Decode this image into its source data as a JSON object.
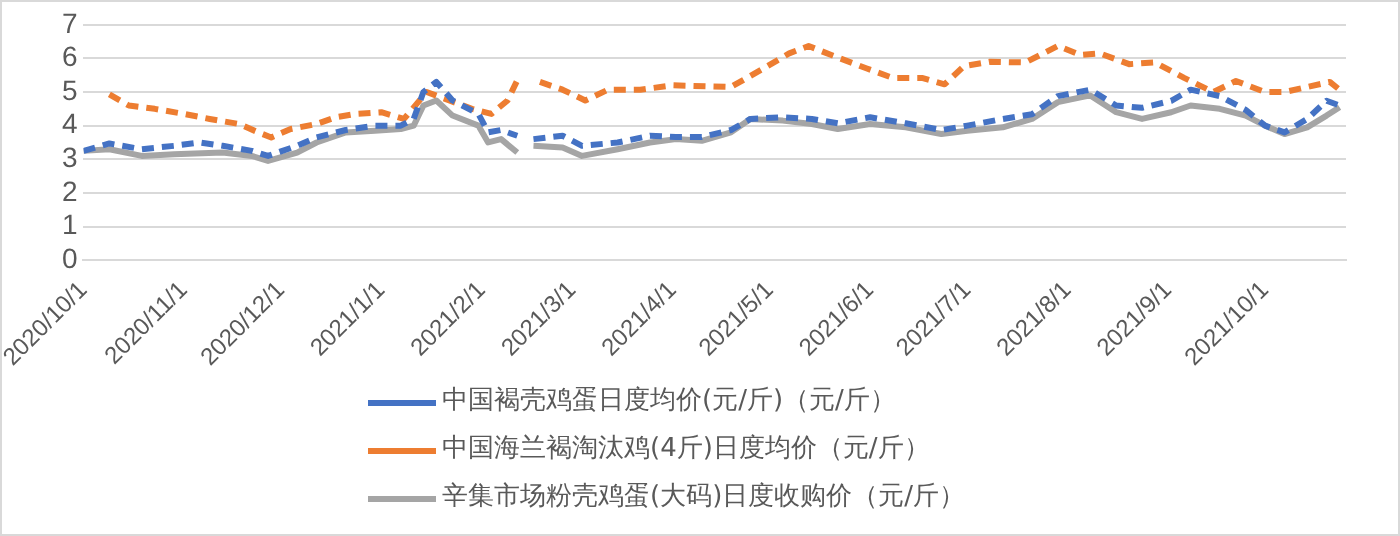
{
  "chart_data": {
    "type": "line",
    "legend": "bottom",
    "grid": "y",
    "marker": "none",
    "xlim": [
      "2020-10-01",
      "2021-10-26"
    ],
    "xticks": [
      {
        "value": "2020-10-01",
        "label": "2020/10/1"
      },
      {
        "value": "2020-11-01",
        "label": "2020/11/1"
      },
      {
        "value": "2020-12-01",
        "label": "2020/12/1"
      },
      {
        "value": "2021-01-01",
        "label": "2021/1/1"
      },
      {
        "value": "2021-02-01",
        "label": "2021/2/1"
      },
      {
        "value": "2021-03-01",
        "label": "2021/3/1"
      },
      {
        "value": "2021-04-01",
        "label": "2021/4/1"
      },
      {
        "value": "2021-05-01",
        "label": "2021/5/1"
      },
      {
        "value": "2021-06-01",
        "label": "2021/6/1"
      },
      {
        "value": "2021-07-01",
        "label": "2021/7/1"
      },
      {
        "value": "2021-08-01",
        "label": "2021/8/1"
      },
      {
        "value": "2021-09-01",
        "label": "2021/9/1"
      },
      {
        "value": "2021-10-01",
        "label": "2021/10/1"
      }
    ],
    "ylim": [
      0,
      7
    ],
    "yticks": [
      0,
      1,
      2,
      3,
      4,
      5,
      6,
      7
    ],
    "series": [
      {
        "name": "中国褐壳鸡蛋日度均价(元/斤)（元/斤）",
        "color": "#4472c4",
        "line_style": "dashed",
        "x": [
          "2020-10-01",
          "2020-10-09",
          "2020-10-19",
          "2020-10-29",
          "2020-11-06",
          "2020-11-13",
          "2020-11-22",
          "2020-11-27",
          "2020-12-06",
          "2020-12-12",
          "2020-12-21",
          "2020-12-30",
          "2021-01-07",
          "2021-01-11",
          "2021-01-14",
          "2021-01-18",
          "2021-01-23",
          "2021-01-31",
          "2021-02-03",
          "2021-02-07",
          "2021-02-12",
          "2021-02-14",
          "2021-02-17",
          "2021-02-26",
          "2021-03-04",
          "2021-03-15",
          "2021-03-25",
          "2021-04-02",
          "2021-04-10",
          "2021-04-19",
          "2021-04-25",
          "2021-05-05",
          "2021-05-14",
          "2021-05-22",
          "2021-06-01",
          "2021-06-12",
          "2021-06-23",
          "2021-07-01",
          "2021-07-12",
          "2021-07-21",
          "2021-07-29",
          "2021-08-08",
          "2021-08-16",
          "2021-08-24",
          "2021-09-02",
          "2021-09-08",
          "2021-09-17",
          "2021-09-25",
          "2021-10-01",
          "2021-10-07",
          "2021-10-14",
          "2021-10-20",
          "2021-10-24"
        ],
        "values": [
          3.25,
          3.47,
          3.3,
          3.4,
          3.5,
          3.4,
          3.25,
          3.1,
          3.4,
          3.65,
          3.87,
          4.0,
          4.0,
          4.2,
          5.0,
          5.3,
          4.75,
          4.35,
          3.8,
          3.87,
          3.7,
          null,
          3.6,
          3.7,
          3.4,
          3.5,
          3.7,
          3.66,
          3.66,
          3.87,
          4.2,
          4.25,
          4.2,
          4.07,
          4.25,
          4.07,
          3.87,
          4.0,
          4.2,
          4.34,
          4.88,
          5.07,
          4.6,
          4.53,
          4.74,
          5.07,
          4.88,
          4.47,
          4.0,
          3.8,
          4.2,
          4.74,
          4.6
        ]
      },
      {
        "name": "中国海兰褐淘汰鸡(4斤)日度均价（元/斤）",
        "color": "#ed7d31",
        "line_style": "dashed",
        "x": [
          "2020-10-09",
          "2020-10-15",
          "2020-10-23",
          "2020-11-01",
          "2020-11-09",
          "2020-11-18",
          "2020-11-24",
          "2020-11-28",
          "2020-12-04",
          "2020-12-12",
          "2020-12-18",
          "2020-12-24",
          "2021-01-01",
          "2021-01-08",
          "2021-01-15",
          "2021-01-22",
          "2021-01-29",
          "2021-02-04",
          "2021-02-09",
          "2021-02-12",
          "2021-02-15",
          "2021-02-19",
          "2021-02-26",
          "2021-03-05",
          "2021-03-12",
          "2021-03-22",
          "2021-04-01",
          "2021-04-19",
          "2021-04-29",
          "2021-05-07",
          "2021-05-13",
          "2021-05-20",
          "2021-05-31",
          "2021-06-08",
          "2021-06-17",
          "2021-06-24",
          "2021-06-30",
          "2021-07-08",
          "2021-07-19",
          "2021-07-29",
          "2021-08-05",
          "2021-08-11",
          "2021-08-20",
          "2021-08-28",
          "2021-09-06",
          "2021-09-15",
          "2021-09-22",
          "2021-10-01",
          "2021-10-07",
          "2021-10-14",
          "2021-10-21",
          "2021-10-24"
        ],
        "values": [
          4.93,
          4.6,
          4.5,
          4.35,
          4.2,
          4.05,
          3.8,
          3.65,
          3.9,
          4.05,
          4.25,
          4.35,
          4.4,
          4.2,
          5.0,
          4.75,
          4.5,
          4.35,
          4.75,
          5.35,
          null,
          5.3,
          5.07,
          4.75,
          5.07,
          5.07,
          5.2,
          5.15,
          5.7,
          6.15,
          6.37,
          6.1,
          5.7,
          5.42,
          5.42,
          5.23,
          5.77,
          5.9,
          5.88,
          6.37,
          6.1,
          6.15,
          5.83,
          5.88,
          5.42,
          5.0,
          5.33,
          5.0,
          5.0,
          5.15,
          5.3,
          5.07
        ]
      },
      {
        "name": "辛集市场粉壳鸡蛋(大码)日度收购价（元/斤）",
        "color": "#a5a5a5",
        "line_style": "solid",
        "x": [
          "2020-10-01",
          "2020-10-09",
          "2020-10-19",
          "2020-10-29",
          "2020-11-13",
          "2020-11-22",
          "2020-11-27",
          "2020-12-06",
          "2020-12-12",
          "2020-12-21",
          "2020-12-30",
          "2021-01-07",
          "2021-01-11",
          "2021-01-14",
          "2021-01-18",
          "2021-01-23",
          "2021-01-31",
          "2021-02-03",
          "2021-02-07",
          "2021-02-12",
          "2021-02-14",
          "2021-02-17",
          "2021-02-26",
          "2021-03-04",
          "2021-03-15",
          "2021-03-25",
          "2021-04-02",
          "2021-04-10",
          "2021-04-19",
          "2021-04-25",
          "2021-05-05",
          "2021-05-14",
          "2021-05-22",
          "2021-06-01",
          "2021-06-12",
          "2021-06-23",
          "2021-07-01",
          "2021-07-12",
          "2021-07-21",
          "2021-07-29",
          "2021-08-08",
          "2021-08-16",
          "2021-08-24",
          "2021-09-02",
          "2021-09-08",
          "2021-09-17",
          "2021-09-25",
          "2021-10-01",
          "2021-10-07",
          "2021-10-14",
          "2021-10-20",
          "2021-10-24"
        ],
        "values": [
          3.25,
          3.3,
          3.1,
          3.15,
          3.2,
          3.1,
          2.95,
          3.2,
          3.5,
          3.8,
          3.85,
          3.9,
          4.0,
          4.6,
          4.75,
          4.3,
          4.0,
          3.5,
          3.6,
          3.2,
          null,
          3.4,
          3.35,
          3.1,
          3.3,
          3.5,
          3.6,
          3.55,
          3.8,
          4.2,
          4.15,
          4.05,
          3.9,
          4.05,
          3.95,
          3.75,
          3.85,
          3.95,
          4.2,
          4.7,
          4.9,
          4.4,
          4.2,
          4.4,
          4.6,
          4.5,
          4.3,
          4.0,
          3.75,
          3.95,
          4.3,
          4.55
        ]
      }
    ]
  }
}
